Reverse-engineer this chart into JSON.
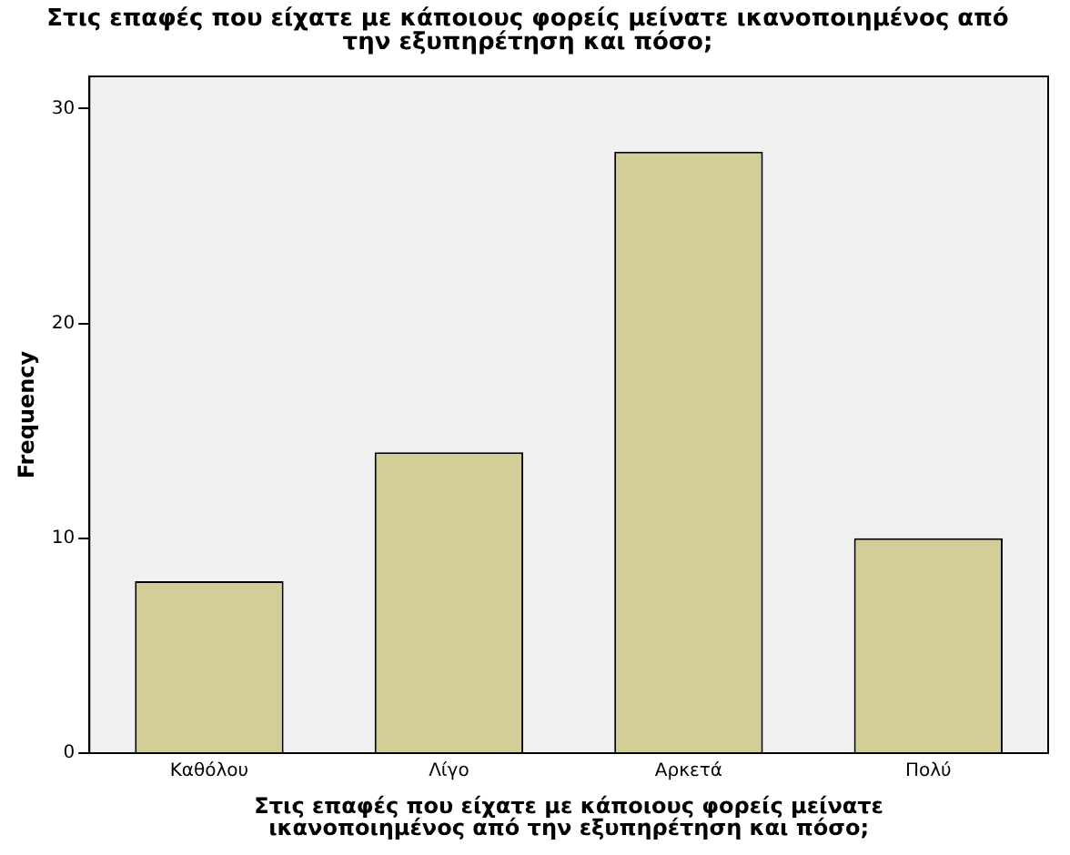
{
  "chart_data": {
    "type": "bar",
    "title": "Στις επαφές που είχατε με κάποιους φορείς μείνατε ικανοποιημένος από την εξυπηρέτηση και πόσο;",
    "xlabel": "Στις επαφές που είχατε με κάποιους φορείς μείνατε ικανοποιημένος από την εξυπηρέτηση και πόσο;",
    "ylabel": "Frequency",
    "categories": [
      "Καθόλου",
      "Λίγο",
      "Αρκετά",
      "Πολύ"
    ],
    "values": [
      8,
      14,
      28,
      10
    ],
    "color": "#d3ce98",
    "ylim": [
      0,
      31.5
    ],
    "yticks": [
      0,
      10,
      20,
      30
    ],
    "grid": false,
    "legend": false
  }
}
